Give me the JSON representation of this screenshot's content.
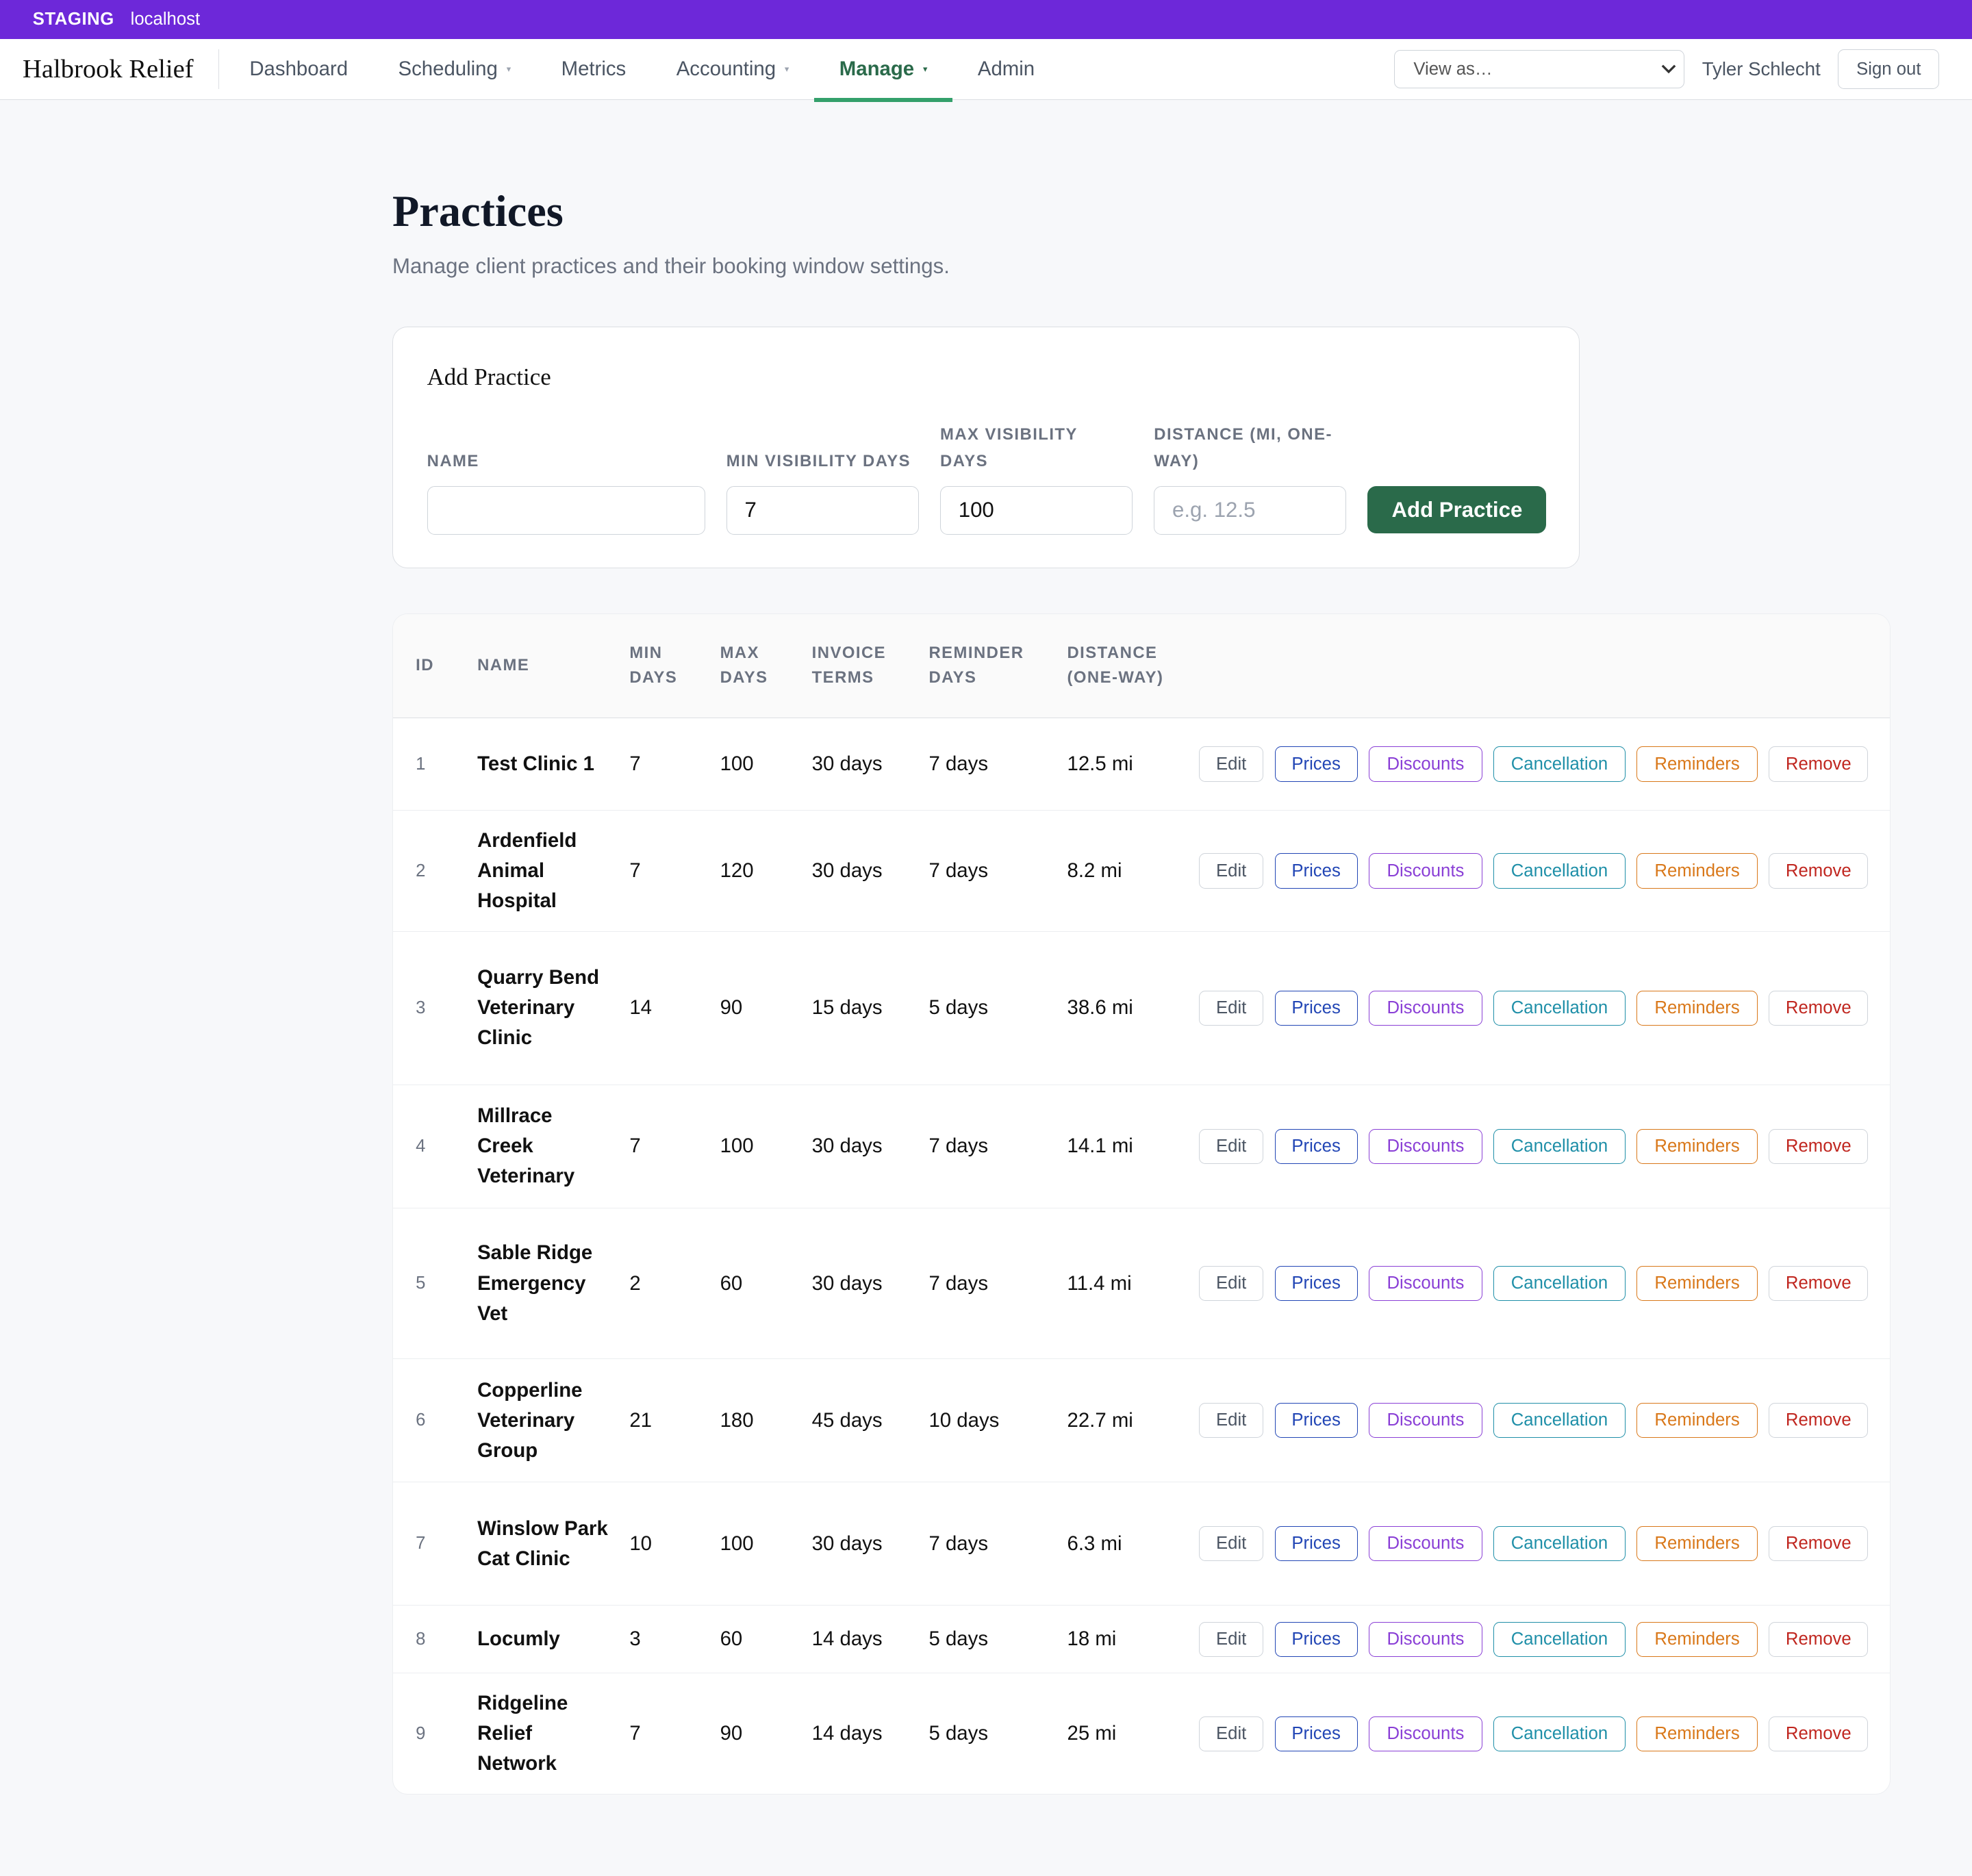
{
  "env_bar": {
    "tag": "STAGING",
    "host": "localhost"
  },
  "nav": {
    "brand": "Halbrook Relief",
    "items": [
      {
        "label": "Dashboard",
        "dropdown": false,
        "active": false
      },
      {
        "label": "Scheduling",
        "dropdown": true,
        "active": false
      },
      {
        "label": "Metrics",
        "dropdown": false,
        "active": false
      },
      {
        "label": "Accounting",
        "dropdown": true,
        "active": false
      },
      {
        "label": "Manage",
        "dropdown": true,
        "active": true
      },
      {
        "label": "Admin",
        "dropdown": false,
        "active": false
      }
    ],
    "view_as_placeholder": "View as…",
    "user_name": "Tyler Schlecht",
    "sign_out": "Sign out"
  },
  "page": {
    "title": "Practices",
    "subtitle": "Manage client practices and their booking window settings."
  },
  "add_form": {
    "title": "Add Practice",
    "name_label": "NAME",
    "name_value": "",
    "min_label": "MIN VISIBILITY DAYS",
    "min_value": "7",
    "max_label": "MAX VISIBILITY DAYS",
    "max_value": "100",
    "distance_label": "DISTANCE (MI, ONE-WAY)",
    "distance_placeholder": "e.g. 12.5",
    "submit_label": "Add Practice"
  },
  "table": {
    "columns": [
      "ID",
      "NAME",
      "MIN DAYS",
      "MAX DAYS",
      "INVOICE TERMS",
      "REMINDER DAYS",
      "DISTANCE (ONE-WAY)"
    ],
    "action_labels": {
      "edit": "Edit",
      "prices": "Prices",
      "discounts": "Discounts",
      "cancellation": "Cancellation",
      "reminders": "Reminders",
      "remove": "Remove"
    },
    "rows": [
      {
        "id": "1",
        "name": "Test Clinic 1",
        "min": "7",
        "max": "100",
        "invoice": "30 days",
        "reminder": "7 days",
        "distance": "12.5 mi"
      },
      {
        "id": "2",
        "name": "Ardenfield Animal Hospital",
        "min": "7",
        "max": "120",
        "invoice": "30 days",
        "reminder": "7 days",
        "distance": "8.2 mi"
      },
      {
        "id": "3",
        "name": "Quarry Bend Veterinary Clinic",
        "min": "14",
        "max": "90",
        "invoice": "15 days",
        "reminder": "5 days",
        "distance": "38.6 mi"
      },
      {
        "id": "4",
        "name": "Millrace Creek Veterinary",
        "min": "7",
        "max": "100",
        "invoice": "30 days",
        "reminder": "7 days",
        "distance": "14.1 mi"
      },
      {
        "id": "5",
        "name": "Sable Ridge Emergency Vet",
        "min": "2",
        "max": "60",
        "invoice": "30 days",
        "reminder": "7 days",
        "distance": "11.4 mi"
      },
      {
        "id": "6",
        "name": "Copperline Veterinary Group",
        "min": "21",
        "max": "180",
        "invoice": "45 days",
        "reminder": "10 days",
        "distance": "22.7 mi"
      },
      {
        "id": "7",
        "name": "Winslow Park Cat Clinic",
        "min": "10",
        "max": "100",
        "invoice": "30 days",
        "reminder": "7 days",
        "distance": "6.3 mi"
      },
      {
        "id": "8",
        "name": "Locumly",
        "min": "3",
        "max": "60",
        "invoice": "14 days",
        "reminder": "5 days",
        "distance": "18 mi"
      },
      {
        "id": "9",
        "name": "Ridgeline Relief Network",
        "min": "7",
        "max": "90",
        "invoice": "14 days",
        "reminder": "5 days",
        "distance": "25 mi"
      }
    ]
  }
}
